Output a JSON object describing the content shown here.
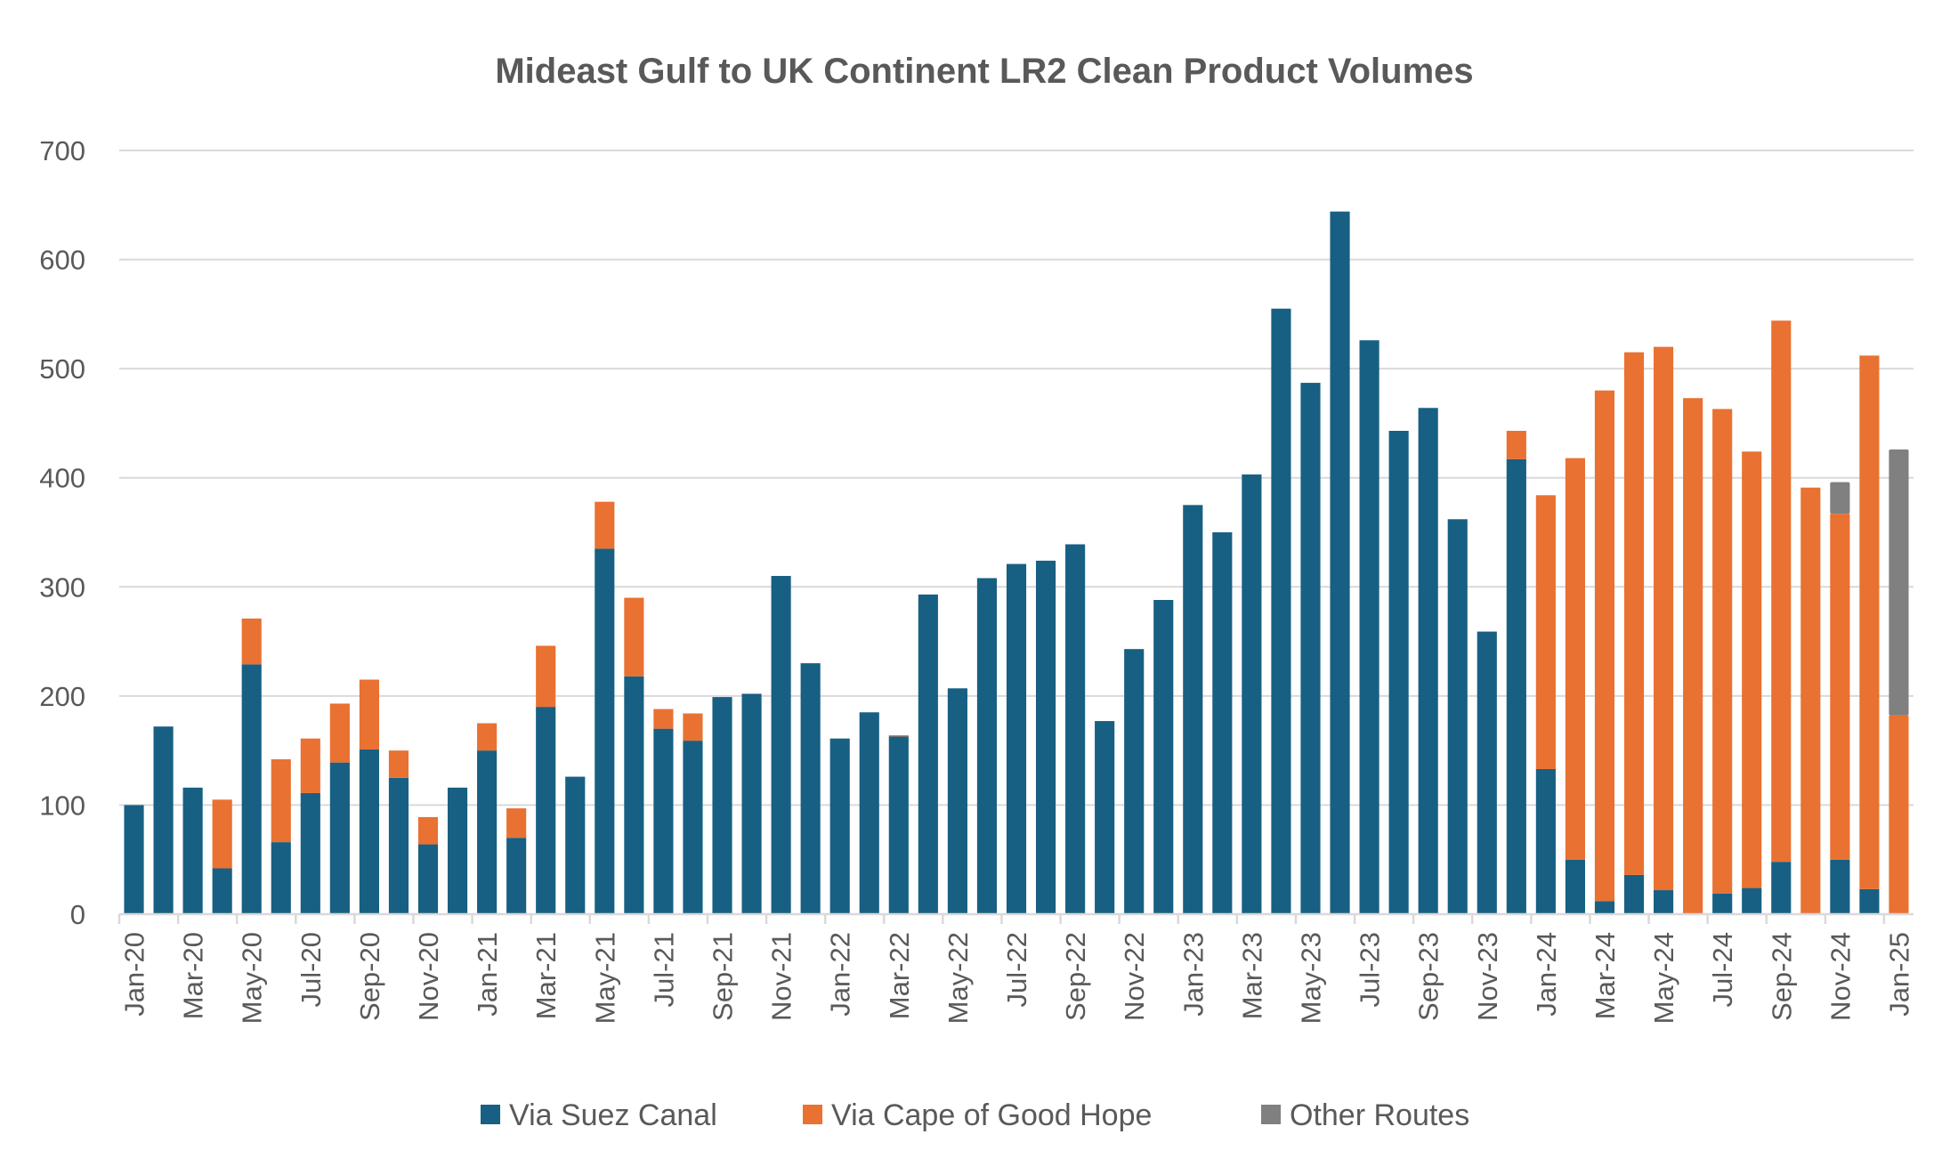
{
  "chart_data": {
    "type": "bar",
    "stacked": true,
    "title": "Mideast Gulf to UK Continent LR2 Clean Product Volumes",
    "xlabel": "",
    "ylabel": "",
    "ylim": [
      0,
      700
    ],
    "yticks": [
      0,
      100,
      200,
      300,
      400,
      500,
      600,
      700
    ],
    "grid": true,
    "legend_position": "bottom",
    "categories": [
      "Jan-20",
      "Feb-20",
      "Mar-20",
      "Apr-20",
      "May-20",
      "Jun-20",
      "Jul-20",
      "Aug-20",
      "Sep-20",
      "Oct-20",
      "Nov-20",
      "Dec-20",
      "Jan-21",
      "Feb-21",
      "Mar-21",
      "Apr-21",
      "May-21",
      "Jun-21",
      "Jul-21",
      "Aug-21",
      "Sep-21",
      "Oct-21",
      "Nov-21",
      "Dec-21",
      "Jan-22",
      "Feb-22",
      "Mar-22",
      "Apr-22",
      "May-22",
      "Jun-22",
      "Jul-22",
      "Aug-22",
      "Sep-22",
      "Oct-22",
      "Nov-22",
      "Dec-22",
      "Jan-23",
      "Feb-23",
      "Mar-23",
      "Apr-23",
      "May-23",
      "Jun-23",
      "Jul-23",
      "Aug-23",
      "Sep-23",
      "Oct-23",
      "Nov-23",
      "Dec-23",
      "Jan-24",
      "Feb-24",
      "Mar-24",
      "Apr-24",
      "May-24",
      "Jun-24",
      "Jul-24",
      "Aug-24",
      "Sep-24",
      "Oct-24",
      "Nov-24",
      "Dec-24",
      "Jan-25"
    ],
    "x_tick_labels": [
      "Jan-20",
      "Mar-20",
      "May-20",
      "Jul-20",
      "Sep-20",
      "Nov-20",
      "Jan-21",
      "Mar-21",
      "May-21",
      "Jul-21",
      "Sep-21",
      "Nov-21",
      "Jan-22",
      "Mar-22",
      "May-22",
      "Jul-22",
      "Sep-22",
      "Nov-22",
      "Jan-23",
      "Mar-23",
      "May-23",
      "Jul-23",
      "Sep-23",
      "Nov-23",
      "Jan-24",
      "Mar-24",
      "May-24",
      "Jul-24",
      "Sep-24",
      "Nov-24",
      "Jan-25"
    ],
    "series": [
      {
        "name": "Via Suez Canal",
        "color": "#176083",
        "values": [
          100,
          172,
          116,
          42,
          229,
          66,
          111,
          139,
          151,
          125,
          64,
          116,
          150,
          70,
          190,
          126,
          335,
          218,
          170,
          159,
          199,
          202,
          310,
          230,
          161,
          185,
          163,
          293,
          207,
          308,
          321,
          324,
          339,
          177,
          243,
          288,
          375,
          350,
          403,
          555,
          487,
          644,
          526,
          443,
          464,
          362,
          259,
          417,
          133,
          50,
          12,
          36,
          22,
          0,
          19,
          24,
          48,
          0,
          50,
          23,
          0
        ]
      },
      {
        "name": "Via Cape of Good Hope",
        "color": "#E97132",
        "values": [
          0,
          0,
          0,
          63,
          42,
          76,
          50,
          54,
          64,
          25,
          25,
          0,
          25,
          27,
          56,
          0,
          43,
          72,
          18,
          25,
          0,
          0,
          0,
          0,
          0,
          0,
          1,
          0,
          0,
          0,
          0,
          0,
          0,
          0,
          0,
          0,
          0,
          0,
          0,
          0,
          0,
          0,
          0,
          0,
          0,
          0,
          0,
          26,
          251,
          368,
          468,
          479,
          498,
          473,
          444,
          400,
          496,
          391,
          317,
          489,
          182
        ]
      },
      {
        "name": "Other Routes",
        "color": "#808080",
        "values": [
          0,
          0,
          0,
          0,
          0,
          0,
          0,
          0,
          0,
          0,
          0,
          0,
          0,
          0,
          0,
          0,
          0,
          0,
          0,
          0,
          0,
          0,
          0,
          0,
          0,
          0,
          0,
          0,
          0,
          0,
          0,
          0,
          0,
          0,
          0,
          0,
          0,
          0,
          0,
          0,
          0,
          0,
          0,
          0,
          0,
          0,
          0,
          0,
          0,
          0,
          0,
          0,
          0,
          0,
          0,
          0,
          0,
          0,
          29,
          0,
          244
        ]
      }
    ]
  }
}
